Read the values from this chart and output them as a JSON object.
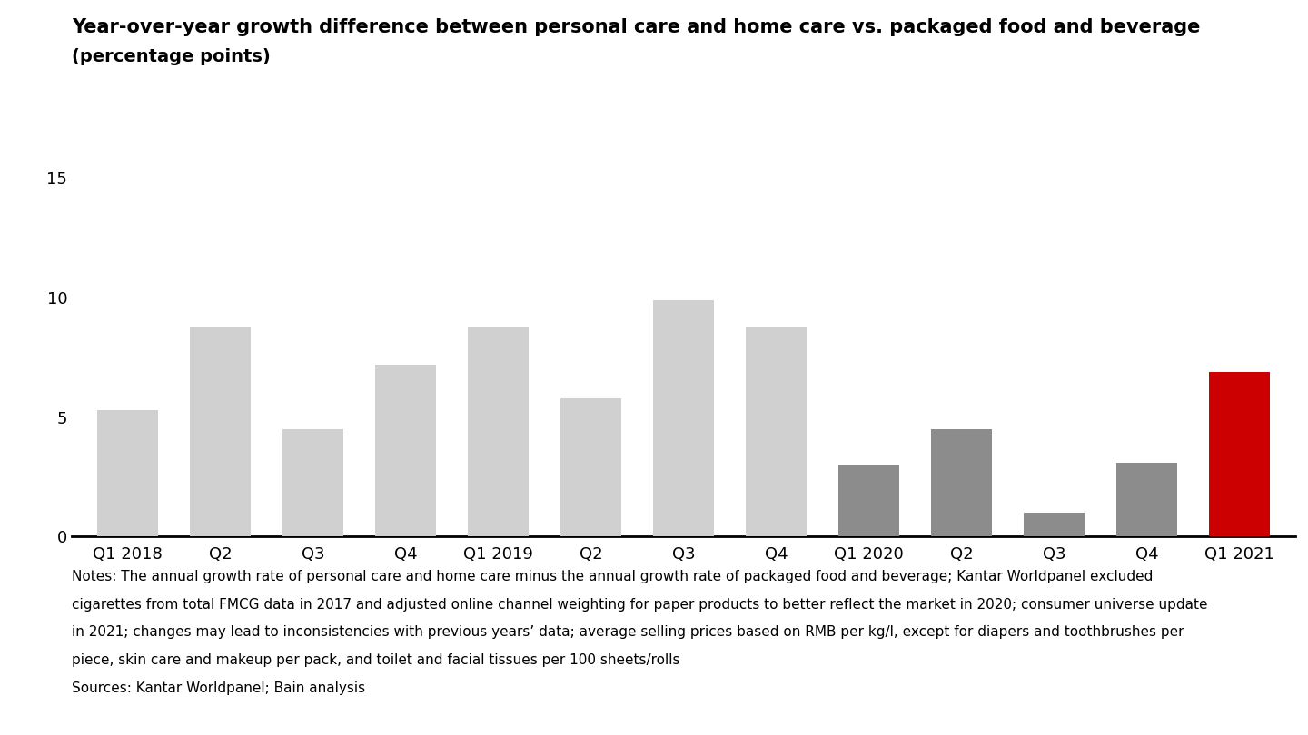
{
  "title_line1": "Year-over-year growth difference between personal care and home care vs. packaged food and beverage",
  "title_line2": "(percentage points)",
  "categories": [
    "Q1 2018",
    "Q2",
    "Q3",
    "Q4",
    "Q1 2019",
    "Q2",
    "Q3",
    "Q4",
    "Q1 2020",
    "Q2",
    "Q3",
    "Q4",
    "Q1 2021"
  ],
  "values": [
    5.3,
    8.8,
    4.5,
    7.2,
    8.8,
    5.8,
    9.9,
    8.8,
    3.0,
    4.5,
    1.0,
    3.1,
    6.9
  ],
  "bar_colors": [
    "#d0d0d0",
    "#d0d0d0",
    "#d0d0d0",
    "#d0d0d0",
    "#d0d0d0",
    "#d0d0d0",
    "#d0d0d0",
    "#d0d0d0",
    "#8c8c8c",
    "#8c8c8c",
    "#8c8c8c",
    "#8c8c8c",
    "#cc0000"
  ],
  "ylim": [
    0,
    16
  ],
  "yticks": [
    0,
    5,
    10,
    15
  ],
  "notes_line1": "Notes: The annual growth rate of personal care and home care minus the annual growth rate of packaged food and beverage; Kantar Worldpanel excluded",
  "notes_line2": "cigarettes from total FMCG data in 2017 and adjusted online channel weighting for paper products to better reflect the market in 2020; consumer universe update",
  "notes_line3": "in 2021; changes may lead to inconsistencies with previous years’ data; average selling prices based on RMB per kg/l, except for diapers and toothbrushes per",
  "notes_line4": "piece, skin care and makeup per pack, and toilet and facial tissues per 100 sheets/rolls",
  "sources": "Sources: Kantar Worldpanel; Bain analysis",
  "bg_color": "#ffffff",
  "title_fontsize": 15,
  "subtitle_fontsize": 14,
  "tick_fontsize": 13,
  "notes_fontsize": 11
}
